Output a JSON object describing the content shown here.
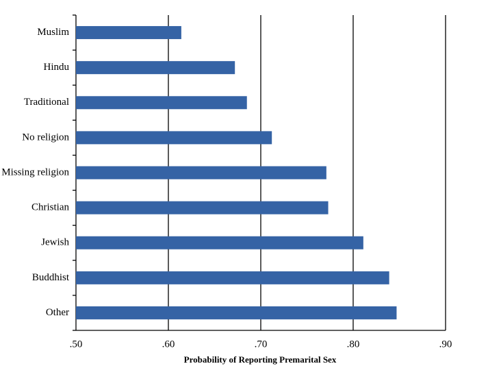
{
  "chart_data": {
    "type": "bar",
    "orientation": "horizontal",
    "x_label": "Probability of Reporting Premarital Sex",
    "categories": [
      "Muslim",
      "Hindu",
      "Traditional",
      "No religion",
      "Missing religion",
      "Christian",
      "Jewish",
      "Buddhist",
      "Other"
    ],
    "values": [
      0.614,
      0.672,
      0.685,
      0.712,
      0.771,
      0.773,
      0.811,
      0.839,
      0.847
    ],
    "color": "#3563a5",
    "xlim": [
      0.5,
      0.9
    ],
    "xticks": [
      {
        "value": 0.5,
        "label": ".50"
      },
      {
        "value": 0.6,
        "label": ".60"
      },
      {
        "value": 0.7,
        "label": ".70"
      },
      {
        "value": 0.8,
        "label": ".80"
      },
      {
        "value": 0.9,
        "label": ".90"
      }
    ],
    "grid": true
  }
}
